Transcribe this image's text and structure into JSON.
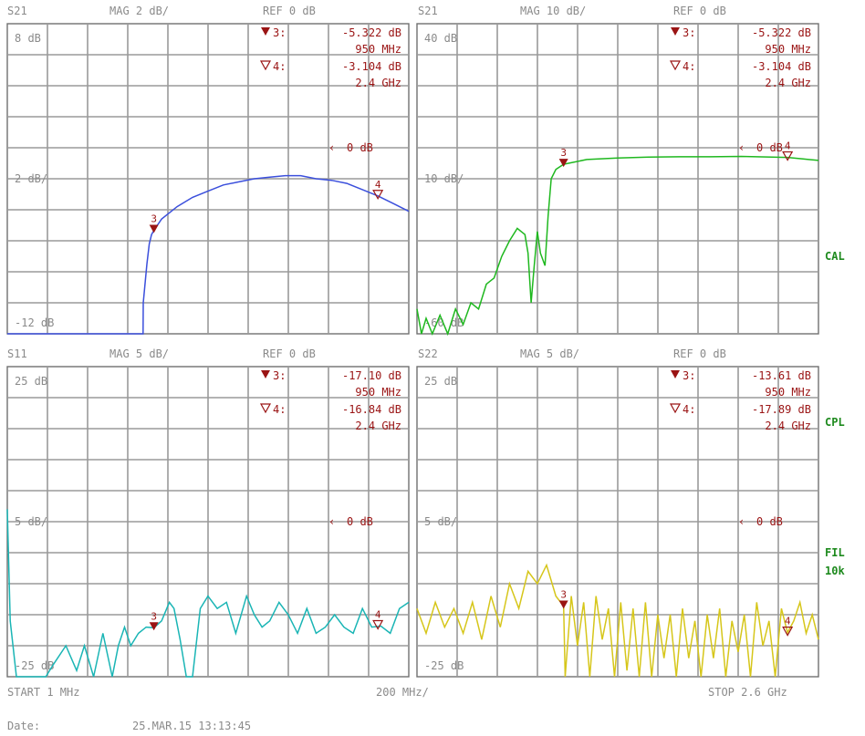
{
  "colors": {
    "background": "#ffffff",
    "grid": "#9a9a9a",
    "frame": "#707070",
    "text": "#8a8a8a",
    "marker": "#9a1414",
    "side_labels": "#1e8a1e",
    "trace_s21_mag2": "#3b4fdc",
    "trace_s21_mag10": "#1fb81f",
    "trace_s11": "#1ab5b5",
    "trace_s22": "#d6c61a"
  },
  "side_labels": {
    "cal": "CAL",
    "cpl": "CPL",
    "fil": "FIL",
    "fil_bw": "10k"
  },
  "footer": {
    "start": "START  1 MHz",
    "div": "200 MHz/",
    "stop": "STOP 2.6 GHz",
    "date_label": "Date:",
    "date_value": "25.MAR.15  13:13:45"
  },
  "chart_data": [
    {
      "type": "line",
      "param": "S21",
      "scale": "MAG 2 dB/",
      "ref": "REF 0 dB",
      "top_label": "8 dB",
      "div_label": "2 dB/",
      "bottom_label": "-12 dB",
      "ref_marker_label": "0 dB",
      "ylim": [
        -12,
        8
      ],
      "xlim_mhz": [
        1,
        2600
      ],
      "ref_y": 0,
      "markers": [
        {
          "id": "3",
          "label": "3:",
          "value": "-5.322 dB",
          "freq": "950 MHz",
          "x": 950,
          "y": -5.322,
          "active": true
        },
        {
          "id": "4",
          "label": "4:",
          "value": "-3.104 dB",
          "freq": "2.4 GHz",
          "x": 2400,
          "y": -3.104,
          "active": false
        }
      ],
      "series": [
        {
          "color": "#3b4fdc",
          "x": [
            1,
            400,
            880,
            881,
            905,
            920,
            935,
            950,
            1000,
            1100,
            1200,
            1300,
            1400,
            1500,
            1600,
            1700,
            1800,
            1900,
            2000,
            2100,
            2200,
            2300,
            2400,
            2500,
            2600
          ],
          "y": [
            -12,
            -12,
            -12,
            -10.0,
            -7.5,
            -6.2,
            -5.6,
            -5.322,
            -4.6,
            -3.8,
            -3.2,
            -2.8,
            -2.4,
            -2.2,
            -2.0,
            -1.9,
            -1.8,
            -1.8,
            -2.0,
            -2.1,
            -2.3,
            -2.7,
            -3.104,
            -3.6,
            -4.1
          ]
        }
      ]
    },
    {
      "type": "line",
      "param": "S21",
      "scale": "MAG 10 dB/",
      "ref": "REF 0 dB",
      "top_label": "40 dB",
      "div_label": "10 dB/",
      "bottom_label": "-60 dB",
      "ref_marker_label": "0 dB",
      "ylim": [
        -60,
        40
      ],
      "xlim_mhz": [
        1,
        2600
      ],
      "ref_y": 0,
      "markers": [
        {
          "id": "3",
          "label": "3:",
          "value": "-5.322 dB",
          "freq": "950 MHz",
          "x": 950,
          "y": -5.322,
          "active": true
        },
        {
          "id": "4",
          "label": "4:",
          "value": "-3.104 dB",
          "freq": "2.4 GHz",
          "x": 2400,
          "y": -3.104,
          "active": false
        }
      ],
      "series": [
        {
          "color": "#1fb81f",
          "x": [
            1,
            30,
            60,
            100,
            150,
            200,
            250,
            300,
            350,
            400,
            450,
            500,
            550,
            600,
            650,
            700,
            720,
            740,
            760,
            780,
            800,
            830,
            850,
            870,
            900,
            950,
            1100,
            1300,
            1500,
            1700,
            1900,
            2100,
            2300,
            2400,
            2500,
            2600
          ],
          "y": [
            -52,
            -60,
            -55,
            -60,
            -54,
            -60,
            -52,
            -57,
            -50,
            -52,
            -44,
            -42,
            -35,
            -30,
            -26,
            -28,
            -34,
            -50,
            -38,
            -27,
            -34,
            -38,
            -22,
            -10,
            -7,
            -5.322,
            -3.8,
            -3.3,
            -3.0,
            -2.9,
            -2.9,
            -2.8,
            -3.0,
            -3.104,
            -3.6,
            -4.1
          ]
        }
      ]
    },
    {
      "type": "line",
      "param": "S11",
      "scale": "MAG 5 dB/",
      "ref": "REF 0 dB",
      "top_label": "25 dB",
      "div_label": "5 dB/",
      "bottom_label": "-25 dB",
      "ref_marker_label": "0 dB",
      "ylim": [
        -25,
        25
      ],
      "xlim_mhz": [
        1,
        2600
      ],
      "ref_y": 0,
      "markers": [
        {
          "id": "3",
          "label": "3:",
          "value": "-17.10 dB",
          "freq": "950 MHz",
          "x": 950,
          "y": -17.1,
          "active": true
        },
        {
          "id": "4",
          "label": "4:",
          "value": "-16.84 dB",
          "freq": "2.4 GHz",
          "x": 2400,
          "y": -16.84,
          "active": false
        }
      ],
      "series": [
        {
          "color": "#1ab5b5",
          "x": [
            1,
            20,
            60,
            100,
            150,
            200,
            250,
            300,
            380,
            450,
            500,
            560,
            620,
            680,
            720,
            760,
            800,
            850,
            900,
            950,
            1000,
            1050,
            1080,
            1120,
            1160,
            1200,
            1250,
            1300,
            1360,
            1420,
            1480,
            1550,
            1600,
            1650,
            1700,
            1760,
            1820,
            1880,
            1940,
            2000,
            2060,
            2120,
            2180,
            2240,
            2300,
            2360,
            2420,
            2480,
            2540,
            2600
          ],
          "y": [
            2,
            -16,
            -25,
            -25,
            -25,
            -25,
            -25,
            -23,
            -20,
            -24,
            -20,
            -25,
            -18,
            -25,
            -20,
            -17,
            -20,
            -18,
            -17,
            -17.1,
            -16,
            -13,
            -14,
            -19,
            -25,
            -25,
            -14,
            -12,
            -14,
            -13,
            -18,
            -12,
            -15,
            -17,
            -16,
            -13,
            -15,
            -18,
            -14,
            -18,
            -17,
            -15,
            -17,
            -18,
            -14,
            -17,
            -16.84,
            -18,
            -14,
            -13
          ]
        }
      ]
    },
    {
      "type": "line",
      "param": "S22",
      "scale": "MAG 5 dB/",
      "ref": "REF 0 dB",
      "top_label": "25 dB",
      "div_label": "5 dB/",
      "bottom_label": "-25 dB",
      "ref_marker_label": "0 dB",
      "ylim": [
        -25,
        25
      ],
      "xlim_mhz": [
        1,
        2600
      ],
      "ref_y": 0,
      "markers": [
        {
          "id": "3",
          "label": "3:",
          "value": "-13.61 dB",
          "freq": "950 MHz",
          "x": 950,
          "y": -13.61,
          "active": true
        },
        {
          "id": "4",
          "label": "4:",
          "value": "-17.89 dB",
          "freq": "2.4 GHz",
          "x": 2400,
          "y": -17.89,
          "active": false
        }
      ],
      "series": [
        {
          "color": "#d6c61a",
          "x": [
            1,
            60,
            120,
            180,
            240,
            300,
            360,
            420,
            480,
            540,
            600,
            660,
            720,
            780,
            840,
            900,
            950,
            960,
            1000,
            1040,
            1080,
            1120,
            1160,
            1200,
            1240,
            1280,
            1320,
            1360,
            1400,
            1440,
            1480,
            1520,
            1560,
            1600,
            1640,
            1680,
            1720,
            1760,
            1800,
            1840,
            1880,
            1920,
            1960,
            2000,
            2040,
            2080,
            2120,
            2160,
            2200,
            2240,
            2280,
            2320,
            2360,
            2400,
            2440,
            2480,
            2520,
            2560,
            2600
          ],
          "y": [
            -14,
            -18,
            -13,
            -17,
            -14,
            -18,
            -13,
            -19,
            -12,
            -17,
            -10,
            -14,
            -8,
            -10,
            -7,
            -12,
            -13.61,
            -25,
            -12,
            -20,
            -13,
            -25,
            -12,
            -19,
            -14,
            -25,
            -13,
            -24,
            -14,
            -25,
            -13,
            -25,
            -15,
            -22,
            -15,
            -25,
            -14,
            -22,
            -16,
            -25,
            -15,
            -22,
            -14,
            -25,
            -16,
            -21,
            -15,
            -25,
            -13,
            -20,
            -16,
            -25,
            -14,
            -17.89,
            -16,
            -13,
            -18,
            -15,
            -19
          ]
        }
      ]
    }
  ]
}
